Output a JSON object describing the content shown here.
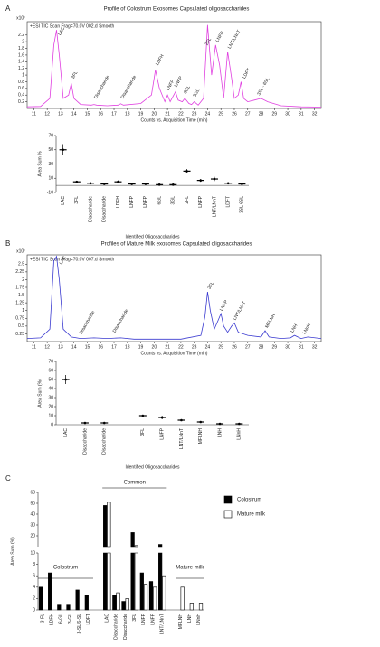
{
  "chart_data": [
    {
      "type": "line",
      "panel": "A",
      "title": "Profile  of Colostrum Exosomes Capsulated oligosaccharides",
      "header": "+ESI TIC Scan Frag=70.0V 002.d Smooth",
      "y_multiplier": "x10⁷",
      "x_label": "Counts vs. Acquisition Time (min)",
      "color": "#e040e0",
      "x": [
        10.5,
        11.5,
        12.2,
        12.5,
        12.7,
        12.9,
        13.2,
        13.6,
        13.8,
        14.0,
        14.5,
        15.3,
        15.5,
        15.7,
        16.5,
        17.3,
        17.5,
        17.7,
        19.0,
        19.8,
        20.1,
        20.4,
        20.8,
        21.0,
        21.2,
        21.4,
        21.6,
        21.8,
        22.1,
        22.3,
        22.6,
        22.8,
        23.0,
        23.3,
        23.7,
        24.0,
        24.3,
        24.6,
        24.9,
        25.2,
        25.5,
        25.8,
        26.0,
        26.3,
        26.5,
        26.7,
        27.0,
        27.5,
        28.0,
        28.5,
        29.5,
        31,
        32.5
      ],
      "values": [
        0.05,
        0.06,
        0.3,
        1.9,
        2.35,
        1.6,
        0.3,
        0.4,
        0.75,
        0.3,
        0.12,
        0.1,
        0.12,
        0.1,
        0.08,
        0.1,
        0.14,
        0.1,
        0.15,
        0.4,
        1.15,
        0.6,
        0.2,
        0.4,
        0.2,
        0.35,
        0.5,
        0.25,
        0.2,
        0.3,
        0.15,
        0.12,
        0.2,
        0.1,
        0.3,
        2.5,
        1.0,
        1.9,
        1.3,
        0.3,
        1.7,
        0.9,
        0.3,
        0.4,
        0.8,
        0.3,
        0.2,
        0.25,
        0.3,
        0.2,
        0.08,
        0.05,
        0.04
      ],
      "peak_labels": [
        "LAC",
        "3FL",
        "Disaccharide",
        "Disaccharide",
        "LDFH",
        "LNFP",
        "LNFP",
        "6GL",
        "3GL",
        "2FL",
        "LNFP",
        "LNT/LNnT",
        "LDFT",
        "3SL - 6SL"
      ],
      "xlim": [
        10.5,
        32.5
      ],
      "xticks": [
        11,
        12,
        13,
        14,
        15,
        16,
        17,
        18,
        19,
        20,
        21,
        22,
        23,
        24,
        25,
        26,
        27,
        28,
        29,
        30,
        31,
        32
      ],
      "ylim": [
        0,
        2.6
      ],
      "yticks": [
        0.2,
        0.4,
        0.6,
        0.8,
        1,
        1.2,
        1.4,
        1.6,
        1.8,
        2,
        2.2
      ]
    },
    {
      "type": "dot",
      "y_label": "Area Sum %",
      "x_label": "Identified Oligosaccharides",
      "color": "#000000",
      "categories": [
        "LAC",
        "3FL",
        "Disaccharide",
        "Disaccharide",
        "LDFH",
        "LNFP",
        "LNFP",
        "6GL",
        "3GL",
        "2FL",
        "LNFP",
        "LNT/LNnT",
        "LDFT",
        "3SL 6SL"
      ],
      "values": [
        50,
        5,
        3,
        2,
        5,
        2,
        2,
        1,
        1,
        20,
        7,
        9,
        3,
        2
      ],
      "errors": [
        8,
        1,
        1,
        1,
        2,
        1,
        1,
        0.5,
        0.5,
        3,
        2,
        3,
        1,
        1
      ],
      "ylim": [
        -10,
        70
      ],
      "yticks": [
        -10,
        10,
        30,
        50,
        70
      ]
    },
    {
      "type": "line",
      "panel": "B",
      "title": "Profiles of Mature Milk exosomes  Capsulated oligosaccharides",
      "header": "+ESI TIC Scan Frag=70.0V 007.d Smooth",
      "y_multiplier": "x10⁷",
      "x_label": "Counts vs. Acquisition Time (min)",
      "color": "#3a3ad0",
      "x": [
        10.5,
        11.5,
        12.2,
        12.5,
        12.7,
        12.9,
        13.2,
        13.8,
        14.5,
        15.5,
        16.5,
        17.5,
        18.5,
        20,
        22,
        23.5,
        23.8,
        24.0,
        24.2,
        24.5,
        24.8,
        25.0,
        25.2,
        25.5,
        25.8,
        26.0,
        26.3,
        27,
        28,
        28.3,
        28.6,
        29.5,
        30.2,
        30.5,
        31,
        31.5,
        32.5
      ],
      "values": [
        0.1,
        0.12,
        0.4,
        2.6,
        2.75,
        2.0,
        0.4,
        0.15,
        0.1,
        0.12,
        0.1,
        0.12,
        0.08,
        0.08,
        0.08,
        0.2,
        0.8,
        1.6,
        1.0,
        0.4,
        0.7,
        0.9,
        0.5,
        0.3,
        0.5,
        0.6,
        0.3,
        0.2,
        0.15,
        0.35,
        0.15,
        0.1,
        0.12,
        0.2,
        0.1,
        0.15,
        0.1
      ],
      "peak_labels": [
        "LAC",
        "Disaccharide",
        "Disaccharide",
        "3FL",
        "LNFP",
        "LNT/LNnT",
        "MFLNH",
        "LNH",
        "LNnH"
      ],
      "xlim": [
        10.5,
        32.5
      ],
      "xticks": [
        11,
        12,
        13,
        14,
        15,
        16,
        17,
        18,
        19,
        20,
        21,
        22,
        23,
        24,
        25,
        26,
        27,
        28,
        29,
        30,
        31,
        32
      ],
      "ylim": [
        0,
        2.8
      ],
      "yticks": [
        0.25,
        0.5,
        0.75,
        1,
        1.25,
        1.5,
        1.75,
        2,
        2.25,
        2.5
      ]
    },
    {
      "type": "dot",
      "y_label": "Area Sum (%)",
      "x_label": "Identified Oligosaccharides",
      "color": "#000000",
      "categories": [
        "LAC",
        "Disaccharide",
        "Disaccharide",
        null,
        "3FL",
        "LNFP",
        "LNT/LNnT",
        "MFLNH",
        "LNH",
        "LNnH"
      ],
      "values": [
        50,
        2,
        2,
        null,
        10,
        8,
        5,
        3,
        1,
        1
      ],
      "errors": [
        5,
        1,
        1,
        null,
        1,
        2,
        1,
        1,
        0.5,
        0.5
      ],
      "ylim": [
        0,
        70
      ],
      "yticks": [
        0,
        10,
        20,
        30,
        40,
        50,
        60,
        70
      ]
    },
    {
      "type": "bar",
      "panel": "C",
      "y_label": "Area Sum (%)",
      "legend": "right",
      "group_labels": [
        "Colostrum",
        "Common",
        "Mature milk"
      ],
      "categories": [
        "3-FL",
        "LDFH",
        "6-GL",
        "3-GL",
        "3-SL/6-SL",
        "LDFT",
        null,
        "LAC",
        "Disaccharide",
        "Disaccharide",
        "3FL",
        "LNFP",
        "LNFP",
        "LNT/LNnT",
        null,
        "MFLNH",
        "LNH",
        "LNnH"
      ],
      "series": [
        {
          "name": "Colostrum",
          "color": "#000000",
          "values": [
            4,
            6.5,
            1,
            1,
            3.5,
            2.5,
            null,
            48,
            2.5,
            1.5,
            23,
            6.5,
            5,
            12,
            null,
            null,
            null,
            null
          ]
        },
        {
          "name": "Mature milk",
          "color": "#ffffff",
          "values": [
            null,
            null,
            null,
            null,
            null,
            null,
            null,
            51,
            3,
            2,
            11,
            4.5,
            4,
            6,
            null,
            4,
            1.2,
            1.2
          ]
        }
      ],
      "ylim_lower": [
        0,
        10
      ],
      "yticks_lower": [
        0,
        2,
        4,
        6,
        8,
        10
      ],
      "ylim_upper": [
        10,
        60
      ],
      "yticks_upper": [
        20,
        30,
        40,
        50,
        60
      ]
    }
  ]
}
